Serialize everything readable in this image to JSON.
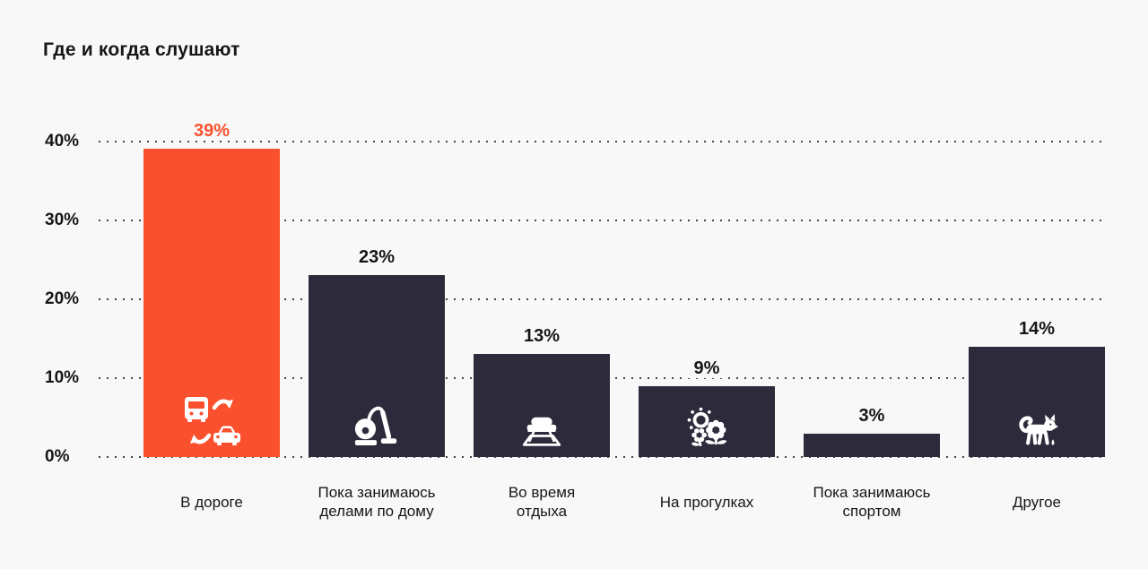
{
  "title": "Где и когда слушают",
  "colors": {
    "background": "#F8F8F8",
    "accent": "#FA502D",
    "bar_dark": "#2D2B3B",
    "text": "#161616",
    "grid_dot": "#454545"
  },
  "chart_data": {
    "type": "bar",
    "title": "Где и когда слушают",
    "xlabel": "",
    "ylabel": "",
    "ylim": [
      0,
      40
    ],
    "grid": "horizontal dotted lines at each y tick",
    "legend": "none",
    "categories": [
      "В дороге",
      "Пока занимаюсь делами по дому",
      "Во время отдыха",
      "На прогулках",
      "Пока занимаюсь спортом",
      "Другое"
    ],
    "values": [
      39,
      23,
      13,
      9,
      3,
      14
    ],
    "yticks": [
      {
        "label": "0%",
        "value": 0
      },
      {
        "label": "10%",
        "value": 10
      },
      {
        "label": "20%",
        "value": 20
      },
      {
        "label": "30%",
        "value": 30
      },
      {
        "label": "40%",
        "value": 40
      }
    ],
    "bars": [
      {
        "label": "В дороге",
        "label_lines": [
          "В дороге"
        ],
        "value": 39,
        "display": "39%",
        "icon": "bus-car-swap-icon",
        "color": "#FA502D",
        "value_color": "#FA502D"
      },
      {
        "label": "Пока занимаюсь делами по дому",
        "label_lines": [
          "Пока занимаюсь",
          "делами по дому"
        ],
        "value": 23,
        "display": "23%",
        "icon": "vacuum-cleaner-icon",
        "color": "#2D2B3B",
        "value_color": "#161616"
      },
      {
        "label": "Во время отдыха",
        "label_lines": [
          "Во время",
          "отдыха"
        ],
        "value": 13,
        "display": "13%",
        "icon": "sofa-icon",
        "color": "#2D2B3B",
        "value_color": "#161616"
      },
      {
        "label": "На прогулках",
        "label_lines": [
          "На прогулках"
        ],
        "value": 9,
        "display": "9%",
        "icon": "sun-flowers-icon",
        "color": "#2D2B3B",
        "value_color": "#161616"
      },
      {
        "label": "Пока занимаюсь спортом",
        "label_lines": [
          "Пока занимаюсь",
          "спортом"
        ],
        "value": 3,
        "display": "3%",
        "icon": null,
        "color": "#2D2B3B",
        "value_color": "#161616"
      },
      {
        "label": "Другое",
        "label_lines": [
          "Другое"
        ],
        "value": 14,
        "display": "14%",
        "icon": "cat-icon",
        "color": "#2D2B3B",
        "value_color": "#161616"
      }
    ]
  }
}
